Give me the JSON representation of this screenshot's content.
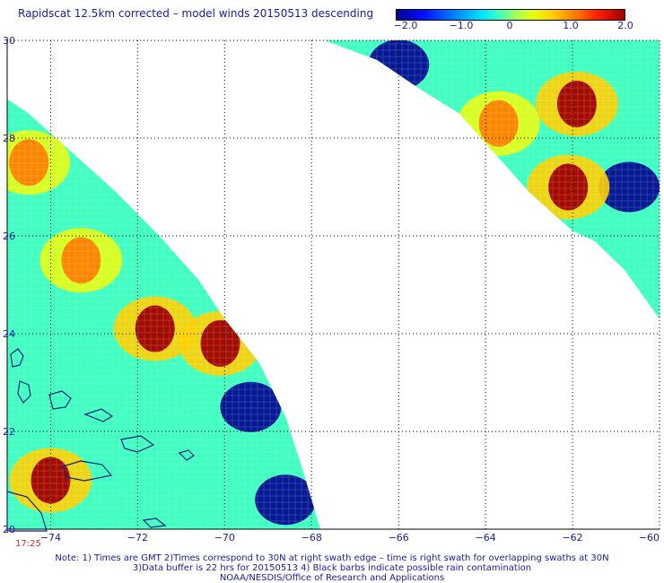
{
  "title": "Rapidscat 12.5km corrected – model winds 20150513 descending",
  "colorbar": {
    "labels": [
      "−2.0",
      "−1.0",
      "0",
      "1.0",
      "2.0"
    ],
    "values": [
      -2.0,
      -1.0,
      0,
      1.0,
      2.0
    ],
    "colors": [
      "#00008f",
      "#0010ff",
      "#0080ff",
      "#00e8ff",
      "#40ffc0",
      "#9fff60",
      "#e8ff10",
      "#ffd000",
      "#ff8000",
      "#ff2000",
      "#9f0000"
    ]
  },
  "map": {
    "lon_range": [
      -75.0,
      -60.0
    ],
    "lat_range": [
      20.0,
      30.0
    ],
    "x_ticks": [
      {
        "value": -74,
        "label": "−74"
      },
      {
        "value": -72,
        "label": "−72"
      },
      {
        "value": -70,
        "label": "−70"
      },
      {
        "value": -68,
        "label": "−68"
      },
      {
        "value": -66,
        "label": "−66"
      },
      {
        "value": -64,
        "label": "−64"
      },
      {
        "value": -62,
        "label": "−62"
      },
      {
        "value": -60,
        "label": "−60"
      }
    ],
    "y_ticks": [
      {
        "value": 30,
        "label": "30"
      },
      {
        "value": 28,
        "label": "28"
      },
      {
        "value": 26,
        "label": "26"
      },
      {
        "value": 24,
        "label": "24"
      },
      {
        "value": 22,
        "label": "22"
      },
      {
        "value": 20,
        "label": "20"
      }
    ],
    "grid": "dotted",
    "swaths": [
      {
        "name": "west-swath",
        "polygon": [
          [
            -75,
            28.8
          ],
          [
            -74.5,
            28.5
          ],
          [
            -73.5,
            27.7
          ],
          [
            -72.5,
            26.9
          ],
          [
            -71.5,
            26.0
          ],
          [
            -70.6,
            25.1
          ],
          [
            -70.0,
            24.3
          ],
          [
            -69.2,
            23.4
          ],
          [
            -68.6,
            22.3
          ],
          [
            -68.2,
            21.2
          ],
          [
            -67.8,
            20.0
          ],
          [
            -75,
            20.0
          ]
        ]
      },
      {
        "name": "east-swath",
        "polygon": [
          [
            -67.7,
            30.0
          ],
          [
            -60,
            30.0
          ],
          [
            -60,
            24.3
          ],
          [
            -60.8,
            25.3
          ],
          [
            -61.5,
            25.9
          ],
          [
            -62.0,
            26.1
          ],
          [
            -62.5,
            26.5
          ],
          [
            -63.0,
            26.9
          ],
          [
            -63.8,
            27.7
          ],
          [
            -64.6,
            28.5
          ],
          [
            -65.5,
            29.0
          ],
          [
            -66.5,
            29.6
          ]
        ]
      }
    ],
    "hotspots": [
      {
        "lon": -61.9,
        "lat": 28.7,
        "value": 2.0
      },
      {
        "lon": -62.1,
        "lat": 27.0,
        "value": 1.8
      },
      {
        "lon": -74.0,
        "lat": 21.0,
        "value": 2.0
      },
      {
        "lon": -73.3,
        "lat": 25.5,
        "value": 1.2
      },
      {
        "lon": -71.6,
        "lat": 24.1,
        "value": 1.8
      },
      {
        "lon": -70.1,
        "lat": 23.8,
        "value": 1.8
      },
      {
        "lon": -74.5,
        "lat": 27.5,
        "value": 1.2
      },
      {
        "lon": -63.7,
        "lat": 28.3,
        "value": 1.1
      }
    ],
    "coldspots": [
      {
        "lon": -60.7,
        "lat": 27.0,
        "value": -2.0
      },
      {
        "lon": -66.0,
        "lat": 29.5,
        "value": -2.0
      },
      {
        "lon": -68.6,
        "lat": 20.6,
        "value": -2.0
      },
      {
        "lon": -69.4,
        "lat": 22.5,
        "value": -1.8
      }
    ]
  },
  "time_label": "17:25",
  "notes": [
    "Note: 1) Times are GMT 2)Times correspond to 30N at right swath edge – time is right swath for overlapping swaths at 30N",
    "3)Data buffer is 22 hrs for 20150513 4) Black barbs indicate possible rain contamination",
    "NOAA/NESDIS/Office of Research and Applications"
  ]
}
